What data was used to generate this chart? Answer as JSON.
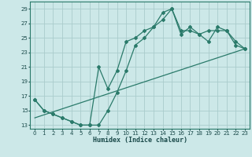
{
  "xlabel": "Humidex (Indice chaleur)",
  "xlim": [
    -0.5,
    23.5
  ],
  "ylim": [
    12.5,
    30
  ],
  "yticks": [
    13,
    15,
    17,
    19,
    21,
    23,
    25,
    27,
    29
  ],
  "xticks": [
    0,
    1,
    2,
    3,
    4,
    5,
    6,
    7,
    8,
    9,
    10,
    11,
    12,
    13,
    14,
    15,
    16,
    17,
    18,
    19,
    20,
    21,
    22,
    23
  ],
  "background_color": "#cce8e8",
  "grid_color": "#aacccc",
  "line_color": "#2a7a6a",
  "line1_x": [
    0,
    1,
    2,
    3,
    4,
    5,
    6,
    7,
    8,
    9,
    10,
    11,
    12,
    13,
    14,
    15,
    16,
    17,
    18,
    19,
    20,
    21,
    22,
    23
  ],
  "line1_y": [
    16.5,
    15.0,
    14.5,
    14.0,
    13.5,
    13.0,
    13.0,
    13.0,
    15.0,
    17.5,
    20.5,
    24.0,
    25.0,
    26.5,
    28.5,
    29.0,
    25.5,
    26.5,
    25.5,
    26.0,
    26.0,
    26.0,
    24.0,
    23.5
  ],
  "line2_x": [
    0,
    1,
    2,
    3,
    4,
    5,
    6,
    7,
    8,
    9,
    10,
    11,
    12,
    13,
    14,
    15,
    16,
    17,
    18,
    19,
    20,
    21,
    22,
    23
  ],
  "line2_y": [
    16.5,
    15.0,
    14.5,
    14.0,
    13.5,
    13.0,
    13.0,
    21.0,
    18.0,
    20.5,
    24.5,
    25.0,
    26.0,
    26.5,
    27.5,
    29.0,
    26.0,
    26.0,
    25.5,
    24.5,
    26.5,
    26.0,
    24.5,
    23.5
  ],
  "line3_x": [
    0,
    23
  ],
  "line3_y": [
    14.0,
    23.5
  ]
}
